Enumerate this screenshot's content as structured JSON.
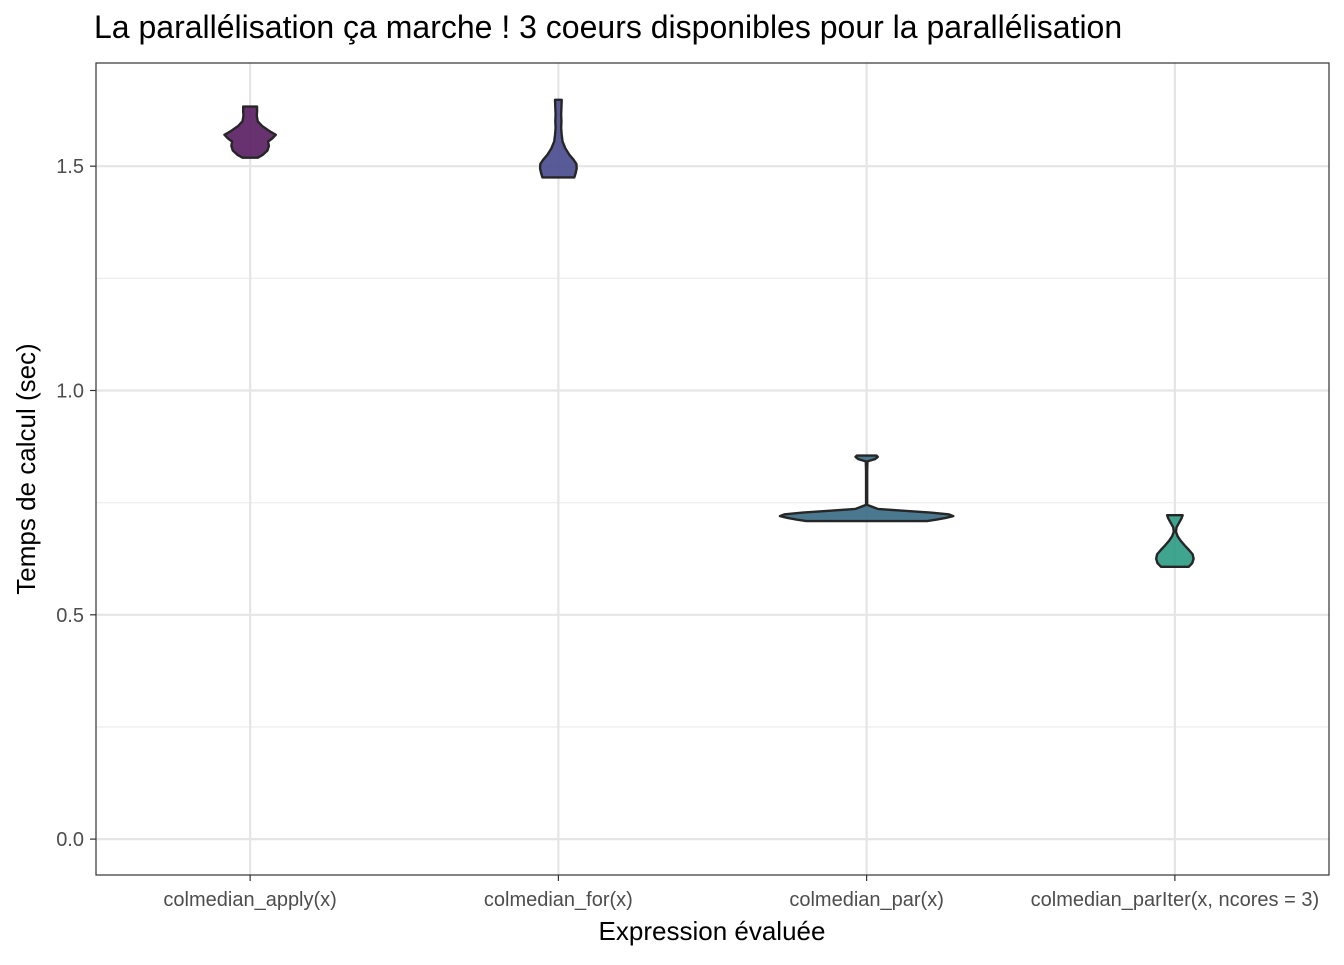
{
  "chart_data": {
    "type": "violin",
    "title": "La parallélisation ça marche ! 3 coeurs disponibles pour la parallélisation",
    "xlabel": "Expression évaluée",
    "ylabel": "Temps de calcul (sec)",
    "ylim": [
      -0.08,
      1.73
    ],
    "y_ticks": [
      0.0,
      0.5,
      1.0,
      1.5
    ],
    "y_tick_labels": [
      "0.0",
      "0.5",
      "1.0",
      "1.5"
    ],
    "grid": true,
    "legend": "none",
    "categories": [
      "colmedian_apply(x)",
      "colmedian_for(x)",
      "colmedian_par(x)",
      "colmedian_parIter(x, ncores = 3)"
    ],
    "series": [
      {
        "category": "colmedian_apply(x)",
        "color": "#5b1f64",
        "profile": [
          [
            1.519,
            0.055
          ],
          [
            1.525,
            0.09
          ],
          [
            1.535,
            0.125
          ],
          [
            1.545,
            0.135
          ],
          [
            1.555,
            0.13
          ],
          [
            1.562,
            0.16
          ],
          [
            1.57,
            0.185
          ],
          [
            1.578,
            0.14
          ],
          [
            1.59,
            0.085
          ],
          [
            1.6,
            0.055
          ],
          [
            1.612,
            0.048
          ],
          [
            1.622,
            0.05
          ],
          [
            1.633,
            0.05
          ]
        ]
      },
      {
        "category": "colmedian_for(x)",
        "color": "#4b4d8f",
        "profile": [
          [
            1.475,
            0.115
          ],
          [
            1.485,
            0.125
          ],
          [
            1.495,
            0.132
          ],
          [
            1.505,
            0.13
          ],
          [
            1.515,
            0.108
          ],
          [
            1.525,
            0.08
          ],
          [
            1.54,
            0.05
          ],
          [
            1.555,
            0.03
          ],
          [
            1.57,
            0.024
          ],
          [
            1.585,
            0.02
          ],
          [
            1.6,
            0.022
          ],
          [
            1.615,
            0.02
          ],
          [
            1.63,
            0.022
          ],
          [
            1.648,
            0.024
          ]
        ]
      },
      {
        "category": "colmedian_par(x)",
        "color": "#3b6e86",
        "profile": [
          [
            0.709,
            0.435
          ],
          [
            0.712,
            0.5
          ],
          [
            0.716,
            0.57
          ],
          [
            0.72,
            0.625
          ],
          [
            0.724,
            0.59
          ],
          [
            0.728,
            0.46
          ],
          [
            0.732,
            0.26
          ],
          [
            0.736,
            0.08
          ],
          [
            0.745,
            0.004
          ],
          [
            0.78,
            0.004
          ],
          [
            0.82,
            0.004
          ],
          [
            0.842,
            0.006
          ],
          [
            0.847,
            0.06
          ],
          [
            0.852,
            0.08
          ],
          [
            0.855,
            0.07
          ]
        ]
      },
      {
        "category": "colmedian_parIter(x, ncores = 3)",
        "color": "#2f9d84",
        "profile": [
          [
            0.607,
            0.1
          ],
          [
            0.615,
            0.125
          ],
          [
            0.625,
            0.135
          ],
          [
            0.635,
            0.128
          ],
          [
            0.645,
            0.1
          ],
          [
            0.655,
            0.07
          ],
          [
            0.665,
            0.042
          ],
          [
            0.675,
            0.02
          ],
          [
            0.685,
            0.008
          ],
          [
            0.695,
            0.012
          ],
          [
            0.705,
            0.03
          ],
          [
            0.715,
            0.048
          ],
          [
            0.722,
            0.056
          ]
        ]
      }
    ]
  }
}
